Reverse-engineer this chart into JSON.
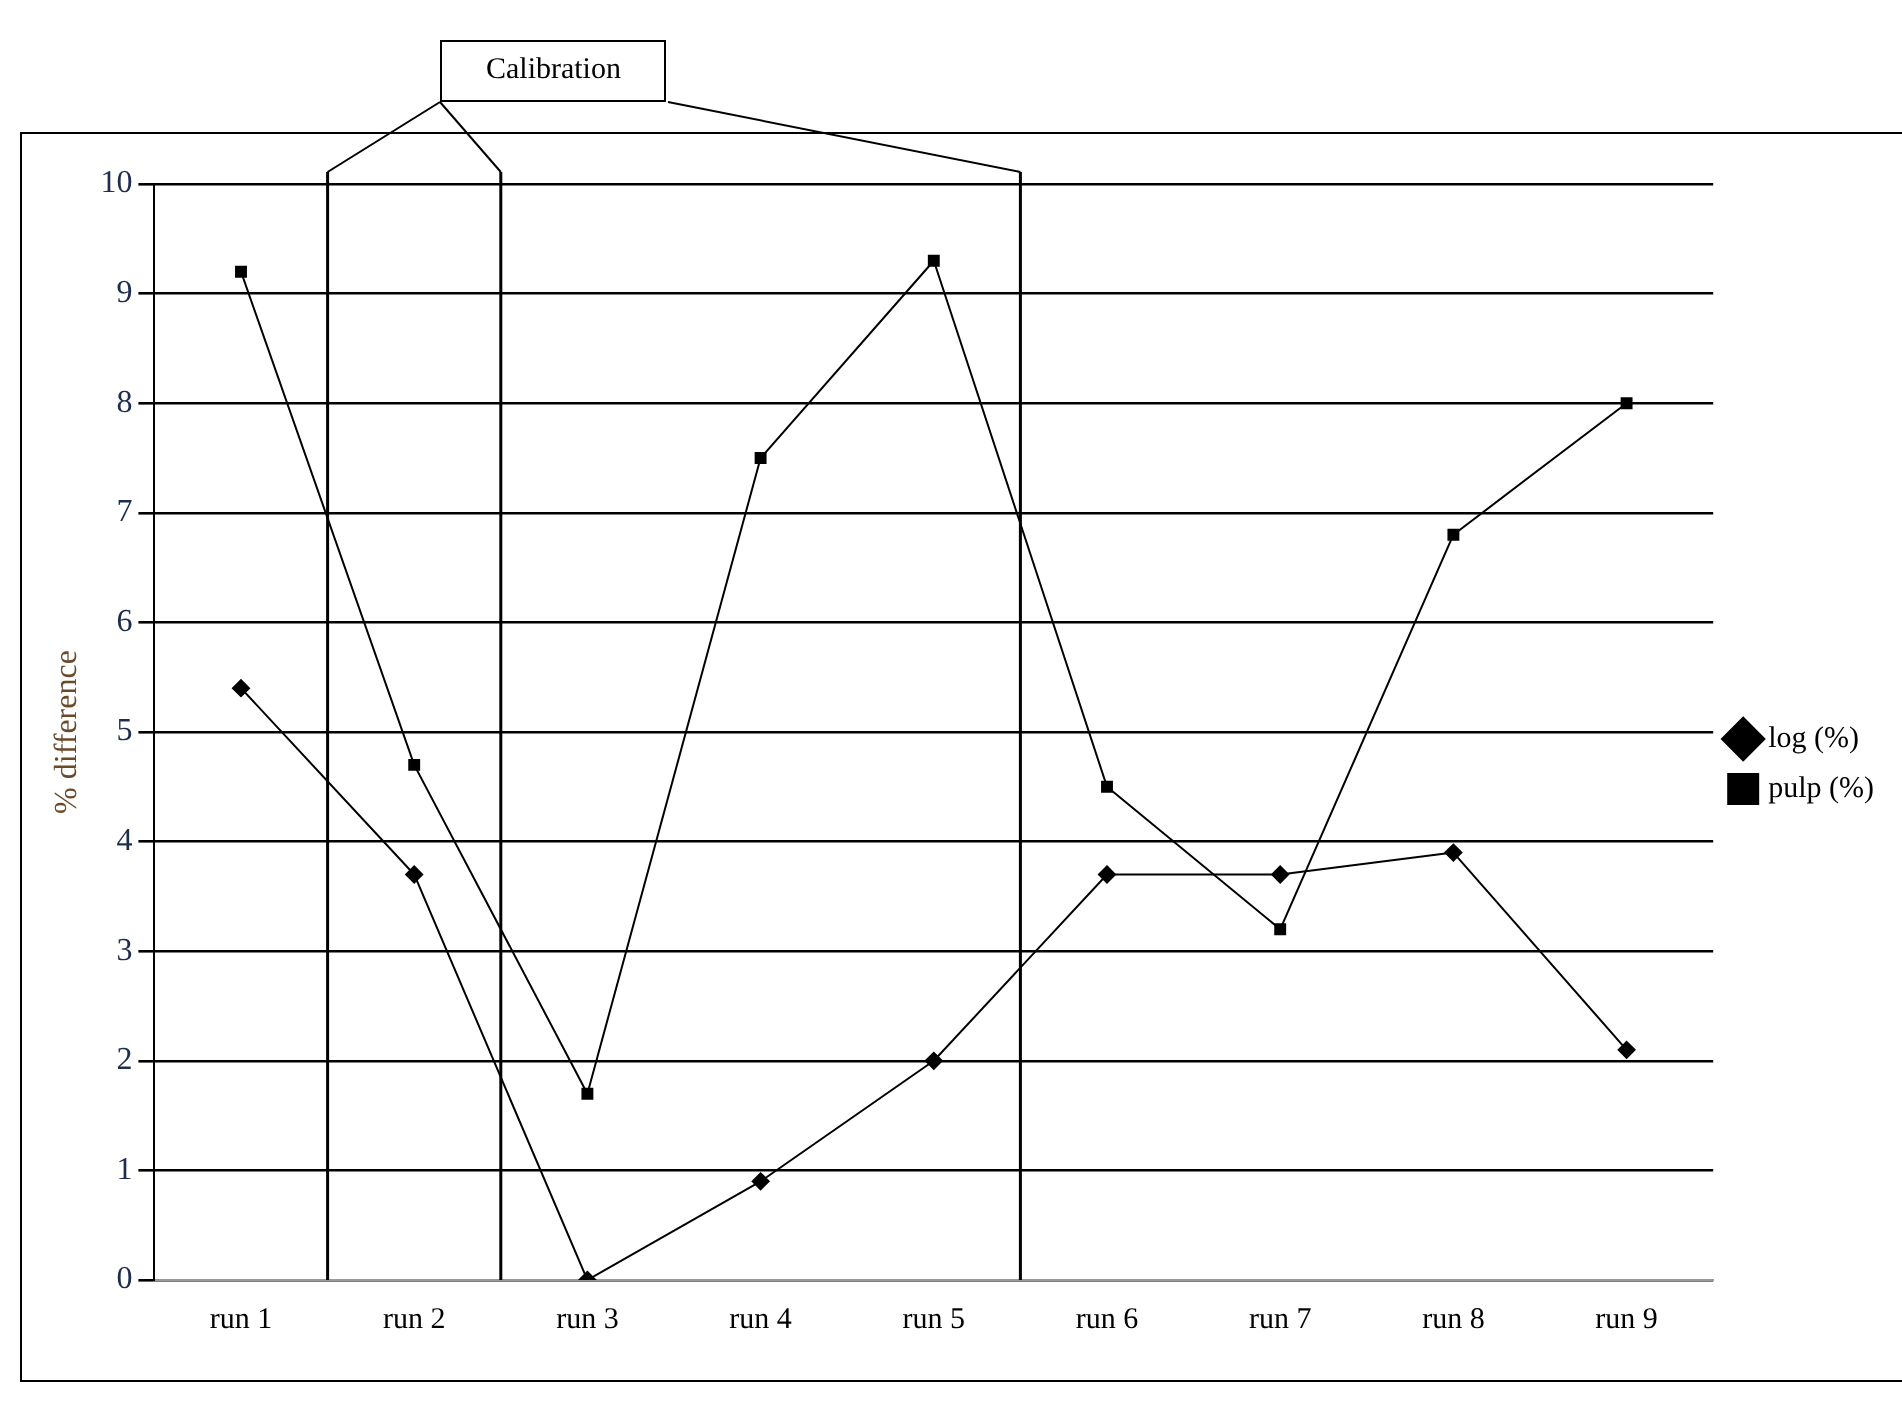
{
  "chart_data": {
    "type": "line",
    "ylabel": "% difference",
    "categories": [
      "run 1",
      "run 2",
      "run 3",
      "run 4",
      "run 5",
      "run 6",
      "run 7",
      "run 8",
      "run 9"
    ],
    "ylim": [
      0,
      10
    ],
    "yticks": [
      0,
      1,
      2,
      3,
      4,
      5,
      6,
      7,
      8,
      9,
      10
    ],
    "series": [
      {
        "name": "log (%)",
        "color": "#000000",
        "marker": "diamond",
        "values": [
          5.4,
          3.7,
          0,
          0.9,
          2.0,
          3.7,
          3.7,
          3.9,
          2.1
        ]
      },
      {
        "name": "pulp (%)",
        "color": "#000000",
        "marker": "square",
        "values": [
          9.2,
          4.7,
          1.7,
          7.5,
          9.3,
          4.5,
          3.2,
          6.8,
          8.0
        ]
      }
    ],
    "annotations": [
      "Calibration"
    ],
    "grid": "y",
    "legend": "right"
  }
}
